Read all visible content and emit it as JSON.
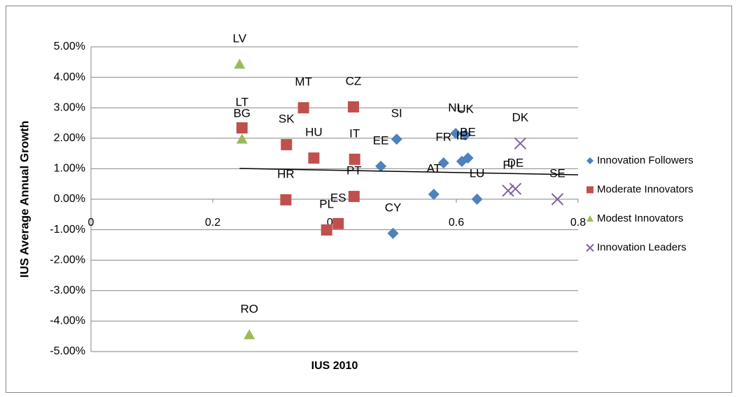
{
  "chart_data": {
    "type": "scatter",
    "x_label": "IUS 2010",
    "y_label": "IUS Average Annual Growth",
    "xlim": [
      0,
      0.8
    ],
    "xticks": [
      0,
      0.2,
      0.4,
      0.6,
      0.8
    ],
    "ylim": [
      -0.05,
      0.05
    ],
    "yticks": [
      {
        "value": 0.05,
        "label": "5.00%"
      },
      {
        "value": 0.04,
        "label": "4.00%"
      },
      {
        "value": 0.03,
        "label": "3.00%"
      },
      {
        "value": 0.02,
        "label": "2.00%"
      },
      {
        "value": 0.01,
        "label": "1.00%"
      },
      {
        "value": 0,
        "label": "0.00%"
      },
      {
        "value": -0.01,
        "label": "-1.00%"
      },
      {
        "value": -0.02,
        "label": "-2.00%"
      },
      {
        "value": -0.03,
        "label": "-3.00%"
      },
      {
        "value": -0.04,
        "label": "-4.00%"
      },
      {
        "value": -0.05,
        "label": "-5.00%"
      }
    ],
    "grid": true,
    "legend": "right",
    "series": [
      {
        "name": "Innovation Followers",
        "color": "#4f81bd",
        "marker": "diamond",
        "labels": [
          "SI",
          "EE",
          "NL",
          "UK",
          "FR",
          "IE",
          "BE",
          "AT",
          "LU",
          "CY"
        ],
        "x": [
          0.502,
          0.476,
          0.599,
          0.615,
          0.579,
          0.609,
          0.619,
          0.563,
          0.634,
          0.496
        ],
        "values": [
          0.0197,
          0.0108,
          0.0216,
          0.0211,
          0.0119,
          0.0124,
          0.0135,
          0.0016,
          0.0,
          -0.0112
        ]
      },
      {
        "name": "Moderate Innovators",
        "color": "#c0504d",
        "marker": "square",
        "labels": [
          "LT",
          "MT",
          "CZ",
          "SK",
          "HU",
          "IT",
          "HR",
          "PT",
          "PL",
          "ES"
        ],
        "x": [
          0.248,
          0.349,
          0.431,
          0.321,
          0.366,
          0.433,
          0.32,
          0.432,
          0.387,
          0.406
        ],
        "values": [
          0.0234,
          0.03,
          0.0303,
          0.0179,
          0.0135,
          0.0131,
          -0.0002,
          0.0009,
          -0.0101,
          -0.008
        ]
      },
      {
        "name": "Modest Innovators",
        "color": "#9bbb59",
        "marker": "triangle",
        "labels": [
          "LV",
          "BG",
          "RO"
        ],
        "x": [
          0.244,
          0.248,
          0.26
        ],
        "values": [
          0.0443,
          0.0197,
          -0.0445
        ]
      },
      {
        "name": "Innovation Leaders",
        "color": "#8064a2",
        "marker": "x",
        "labels": [
          "DK",
          "FI",
          "DE",
          "SE"
        ],
        "x": [
          0.705,
          0.685,
          0.697,
          0.766
        ],
        "values": [
          0.0183,
          0.0028,
          0.0034,
          0.0
        ]
      }
    ],
    "trendline": {
      "color": "#000000",
      "x": [
        0.244,
        0.8
      ],
      "values": [
        0.0101,
        0.008
      ]
    }
  }
}
